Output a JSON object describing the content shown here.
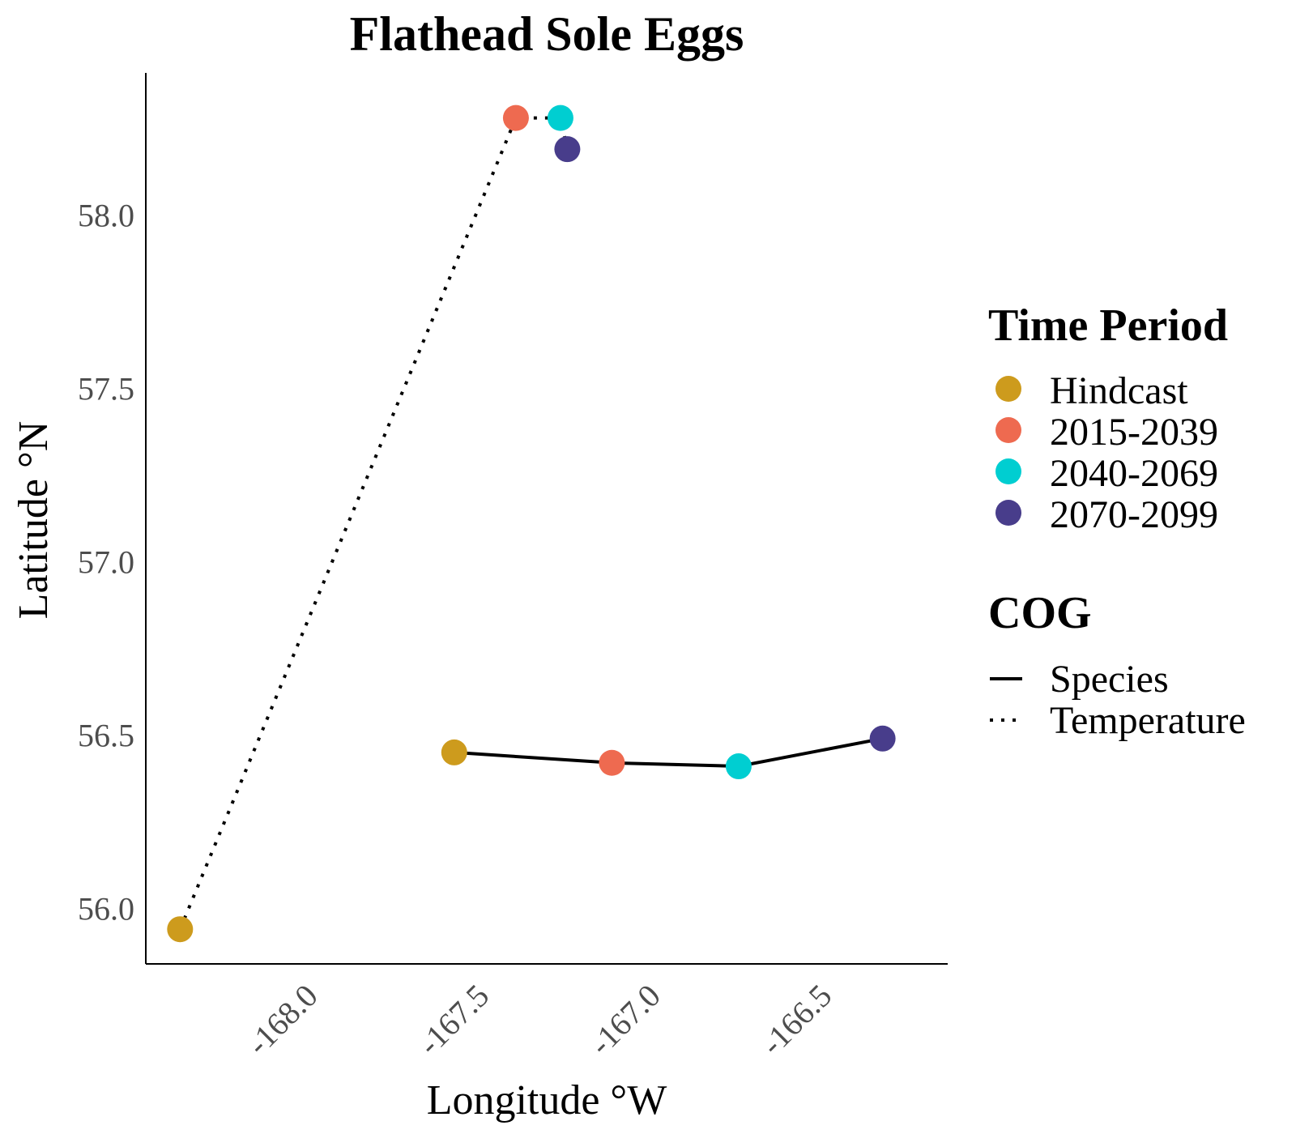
{
  "chart_data": {
    "type": "scatter",
    "title": "Flathead Sole Eggs",
    "xlabel": "Longitude °W",
    "ylabel": "Latitude °N",
    "xlim": [
      -168.46,
      -166.12
    ],
    "ylim": [
      55.84,
      58.41
    ],
    "xticks": [
      -168.0,
      -167.5,
      -167.0,
      -166.5
    ],
    "xtick_labels": [
      "-168.0",
      "-167.5",
      "-167.0",
      "-166.5"
    ],
    "yticks": [
      56.0,
      56.5,
      57.0,
      57.5,
      58.0
    ],
    "ytick_labels": [
      "56.0",
      "56.5",
      "57.0",
      "57.5",
      "58.0"
    ],
    "grid": false,
    "legend_position": "right",
    "color_legend": {
      "title": "Time Period",
      "categories": [
        "Hindcast",
        "2015-2039",
        "2040-2069",
        "2070-2099"
      ],
      "colors": [
        "#cd9b1d",
        "#ee6a50",
        "#00ced1",
        "#483d8b"
      ]
    },
    "linetype_legend": {
      "title": "COG",
      "entries": [
        {
          "label": "Species",
          "style": "solid"
        },
        {
          "label": "Temperature",
          "style": "dotted"
        }
      ]
    },
    "series": [
      {
        "name": "Species",
        "style": "solid",
        "points": [
          {
            "period": "Hindcast",
            "x": -167.56,
            "y": 56.45
          },
          {
            "period": "2015-2039",
            "x": -167.1,
            "y": 56.42
          },
          {
            "period": "2040-2069",
            "x": -166.73,
            "y": 56.41
          },
          {
            "period": "2070-2099",
            "x": -166.31,
            "y": 56.49
          }
        ]
      },
      {
        "name": "Temperature",
        "style": "dotted",
        "points": [
          {
            "period": "Hindcast",
            "x": -168.36,
            "y": 55.94
          },
          {
            "period": "2015-2039",
            "x": -167.38,
            "y": 58.28
          },
          {
            "period": "2040-2069",
            "x": -167.25,
            "y": 58.28
          },
          {
            "period": "2070-2099",
            "x": -167.23,
            "y": 58.19
          }
        ]
      }
    ]
  }
}
